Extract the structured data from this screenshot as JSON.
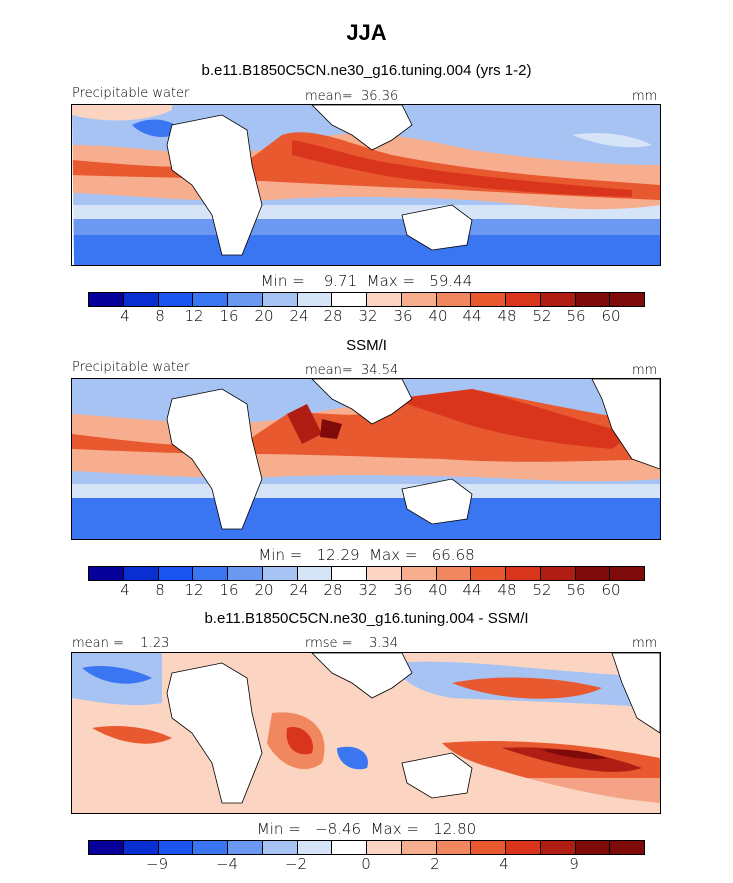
{
  "title": "JJA",
  "colors": {
    "scale": [
      "#07009a",
      "#0a2fd0",
      "#1a55ef",
      "#3b76f2",
      "#6b98f1",
      "#a6c3f4",
      "#d5e4f6",
      "#ffffff",
      "#fbd5c2",
      "#f7ae8f",
      "#f0875f",
      "#e8592f",
      "#d9351c",
      "#b01d12",
      "#7e0b09"
    ],
    "land_outline": "#000000"
  },
  "panels": [
    {
      "id": "model",
      "subtitle": "b.e11.B1850C5CN.ne30_g16.tuning.004 (yrs 1-2)",
      "left_label": "Precipitable water",
      "center_label": "mean=  36.36",
      "units": "mm",
      "minmax": "Min =    9.71  Max =   59.44",
      "ticks": [
        "4",
        "8",
        "12",
        "16",
        "20",
        "24",
        "28",
        "32",
        "36",
        "40",
        "44",
        "48",
        "52",
        "56",
        "60"
      ]
    },
    {
      "id": "obs",
      "subtitle": "SSM/I",
      "left_label": "Precipitable water",
      "center_label": "mean=  34.54",
      "units": "mm",
      "minmax": "Min =   12.29  Max =   66.68",
      "ticks": [
        "4",
        "8",
        "12",
        "16",
        "20",
        "24",
        "28",
        "32",
        "36",
        "40",
        "44",
        "48",
        "52",
        "56",
        "60"
      ]
    },
    {
      "id": "diff",
      "subtitle": "b.e11.B1850C5CN.ne30_g16.tuning.004 - SSM/I",
      "left_label": "mean =    1.23",
      "center_label": "rmse =    3.34",
      "units": "mm",
      "minmax": "Min =   −8.46  Max =   12.80",
      "ticks": [
        "−9",
        "−4",
        "−2",
        "0",
        "2",
        "4",
        "9"
      ]
    }
  ]
}
